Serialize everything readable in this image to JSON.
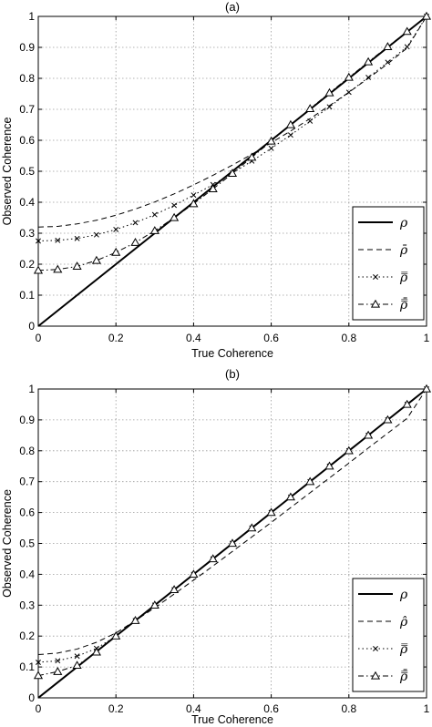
{
  "chart_data": [
    {
      "type": "line",
      "title": "(a)",
      "xlabel": "True Coherence",
      "ylabel": "Observed Coherence",
      "xlim": [
        0,
        1
      ],
      "ylim": [
        0,
        1
      ],
      "xticks": [
        "0",
        "0.2",
        "0.4",
        "0.6",
        "0.8",
        "1"
      ],
      "yticks": [
        "0",
        "0.1",
        "0.2",
        "0.3",
        "0.4",
        "0.5",
        "0.6",
        "0.7",
        "0.8",
        "0.9",
        "1"
      ],
      "grid": true,
      "legend_position": "lower-right",
      "x": [
        0,
        0.05,
        0.1,
        0.15,
        0.2,
        0.25,
        0.3,
        0.35,
        0.4,
        0.45,
        0.5,
        0.55,
        0.6,
        0.65,
        0.7,
        0.75,
        0.8,
        0.85,
        0.9,
        0.95,
        1
      ],
      "series": [
        {
          "name": "ρ",
          "style": "solid",
          "marker": "none",
          "values": [
            0,
            0.05,
            0.1,
            0.15,
            0.2,
            0.25,
            0.3,
            0.35,
            0.4,
            0.45,
            0.5,
            0.55,
            0.6,
            0.65,
            0.7,
            0.75,
            0.8,
            0.85,
            0.9,
            0.95,
            1
          ]
        },
        {
          "name": "ρ̄",
          "style": "dashed",
          "marker": "none",
          "values": [
            0.32,
            0.322,
            0.33,
            0.342,
            0.358,
            0.378,
            0.401,
            0.427,
            0.456,
            0.487,
            0.52,
            0.555,
            0.592,
            0.63,
            0.67,
            0.712,
            0.755,
            0.8,
            0.847,
            0.898,
            1
          ]
        },
        {
          "name": "ρ̿",
          "style": "dotted",
          "marker": "x",
          "values": [
            0.275,
            0.277,
            0.283,
            0.295,
            0.312,
            0.334,
            0.36,
            0.39,
            0.423,
            0.457,
            0.494,
            0.533,
            0.574,
            0.617,
            0.662,
            0.708,
            0.755,
            0.803,
            0.852,
            0.902,
            1
          ]
        },
        {
          "name": "ρ̿̄",
          "style": "dashdot",
          "marker": "triangle",
          "values": [
            0.18,
            0.183,
            0.193,
            0.212,
            0.238,
            0.27,
            0.308,
            0.35,
            0.395,
            0.443,
            0.493,
            0.545,
            0.597,
            0.65,
            0.702,
            0.753,
            0.803,
            0.853,
            0.902,
            0.951,
            1
          ]
        }
      ]
    },
    {
      "type": "line",
      "title": "(b)",
      "xlabel": "True Coherence",
      "ylabel": "Observed Coherence",
      "xlim": [
        0,
        1
      ],
      "ylim": [
        0,
        1
      ],
      "xticks": [
        "0",
        "0.2",
        "0.4",
        "0.6",
        "0.8",
        "1"
      ],
      "yticks": [
        "0",
        "0.1",
        "0.2",
        "0.3",
        "0.4",
        "0.5",
        "0.6",
        "0.7",
        "0.8",
        "0.9",
        "1"
      ],
      "grid": true,
      "legend_position": "lower-right",
      "x": [
        0,
        0.05,
        0.1,
        0.15,
        0.2,
        0.25,
        0.3,
        0.35,
        0.4,
        0.45,
        0.5,
        0.55,
        0.6,
        0.65,
        0.7,
        0.75,
        0.8,
        0.85,
        0.9,
        0.95,
        1
      ],
      "series": [
        {
          "name": "ρ",
          "style": "solid",
          "marker": "none",
          "values": [
            0,
            0.05,
            0.1,
            0.15,
            0.2,
            0.25,
            0.3,
            0.35,
            0.4,
            0.45,
            0.5,
            0.55,
            0.6,
            0.65,
            0.7,
            0.75,
            0.8,
            0.85,
            0.9,
            0.95,
            1
          ]
        },
        {
          "name": "ρ̂",
          "style": "dashed",
          "marker": "none",
          "values": [
            0.14,
            0.145,
            0.158,
            0.18,
            0.21,
            0.25,
            0.292,
            0.336,
            0.381,
            0.427,
            0.474,
            0.521,
            0.568,
            0.616,
            0.664,
            0.712,
            0.76,
            0.809,
            0.857,
            0.905,
            1
          ]
        },
        {
          "name": "ρ̿",
          "style": "dotted",
          "marker": "x",
          "values": [
            0.115,
            0.12,
            0.135,
            0.16,
            0.2,
            0.25,
            0.3,
            0.35,
            0.4,
            0.45,
            0.5,
            0.55,
            0.6,
            0.65,
            0.7,
            0.75,
            0.8,
            0.85,
            0.9,
            0.95,
            1
          ]
        },
        {
          "name": "ρ̿̄",
          "style": "dashdot",
          "marker": "triangle",
          "values": [
            0.072,
            0.085,
            0.105,
            0.148,
            0.2,
            0.25,
            0.3,
            0.35,
            0.4,
            0.45,
            0.5,
            0.55,
            0.6,
            0.65,
            0.7,
            0.75,
            0.8,
            0.85,
            0.9,
            0.95,
            1
          ]
        }
      ]
    }
  ]
}
